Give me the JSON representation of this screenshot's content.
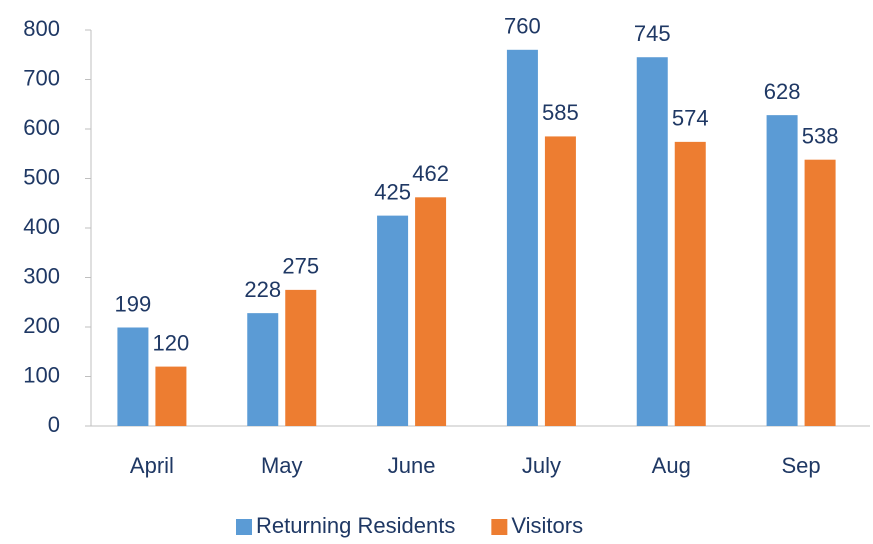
{
  "chart_data": {
    "type": "bar",
    "categories": [
      "April",
      "May",
      "June",
      "July",
      "Aug",
      "Sep"
    ],
    "series": [
      {
        "name": "Returning Residents",
        "color": "#5b9bd5",
        "values": [
          199,
          228,
          425,
          760,
          745,
          628
        ]
      },
      {
        "name": "Visitors",
        "color": "#ed7d31",
        "values": [
          120,
          275,
          462,
          585,
          574,
          538
        ]
      }
    ],
    "ylim": [
      0,
      800
    ],
    "yticks": [
      0,
      100,
      200,
      300,
      400,
      500,
      600,
      700,
      800
    ],
    "grid": false,
    "legend": "bottom"
  }
}
